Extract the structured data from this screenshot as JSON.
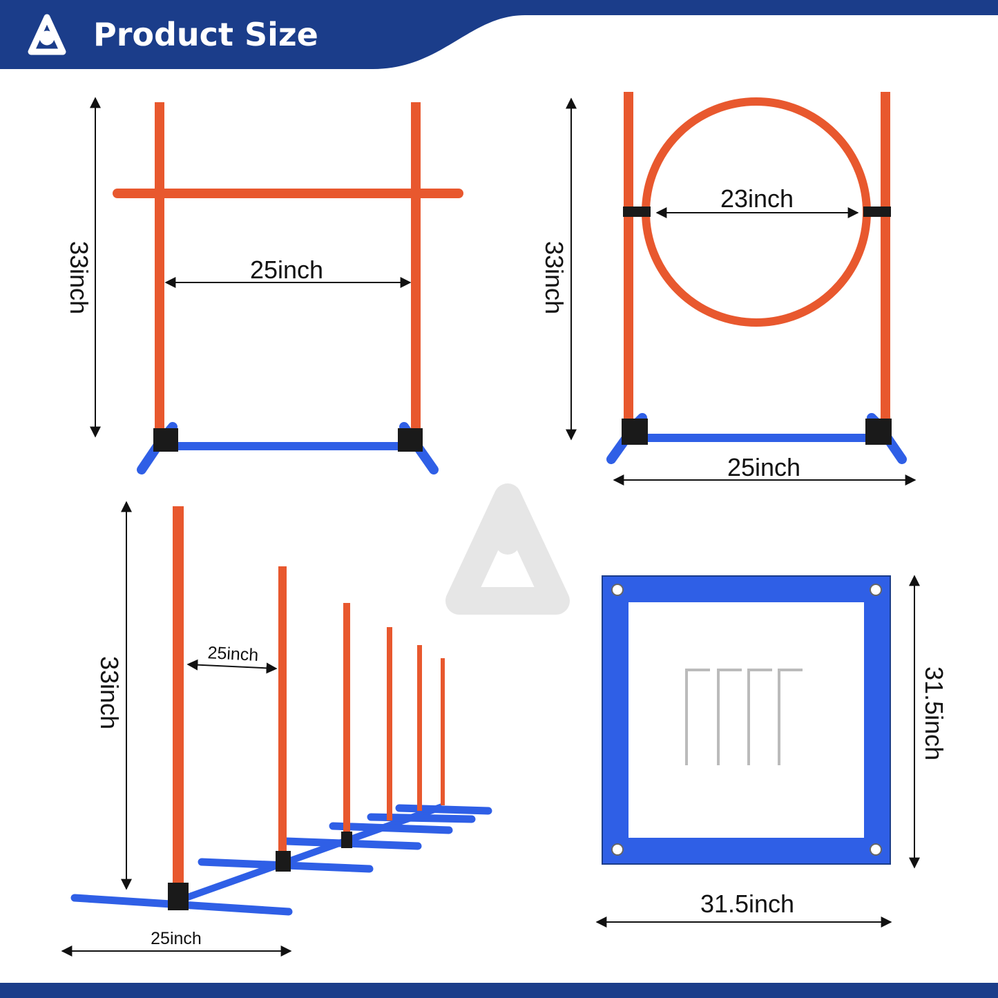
{
  "header": {
    "title": "Product Size",
    "logo_icon": "a-logo-icon"
  },
  "colors": {
    "navy": "#1b3d8a",
    "pole": "#e8582e",
    "base": "#2f5fe6",
    "joint": "#1a1a1a"
  },
  "hurdle": {
    "height": "33inch",
    "width": "25inch"
  },
  "tire_jump": {
    "height": "33inch",
    "ring_diameter": "23inch",
    "width": "25inch"
  },
  "weave_poles": {
    "height": "33inch",
    "spacing": "25inch",
    "base_width": "25inch"
  },
  "pause_box": {
    "height": "31.5inch",
    "width": "31.5inch"
  }
}
